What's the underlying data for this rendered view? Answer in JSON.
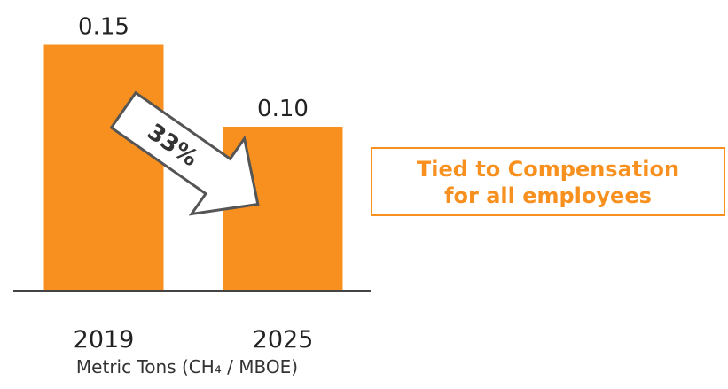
{
  "chart_data": {
    "type": "bar",
    "categories": [
      "2019",
      "2025"
    ],
    "values": [
      0.15,
      0.1
    ],
    "value_labels": [
      "0.15",
      "0.10"
    ],
    "xlabel": "Metric Tons (CH₄ / MBOE)",
    "ylim": [
      0,
      0.16
    ],
    "grid": false,
    "annotation": "33%",
    "bar_color": "#f7901e",
    "arrow_color": "#ffffff",
    "arrow_stroke": "#555555"
  },
  "callout": {
    "line1": "Tied to Compensation",
    "line2": "for all employees",
    "color": "#f7901e"
  }
}
